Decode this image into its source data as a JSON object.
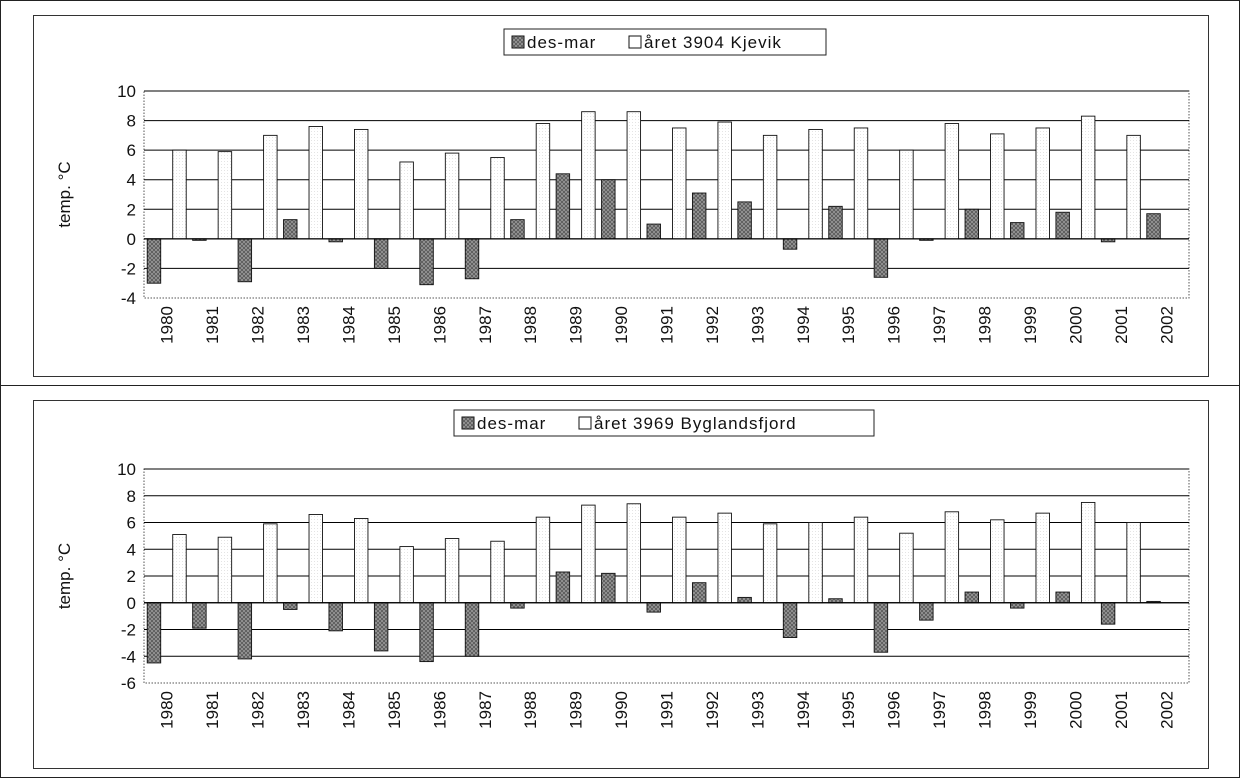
{
  "colors": {
    "des_mar_fill": "#555555",
    "aret_fill": "#ffffff",
    "gridline": "#000000",
    "plot_border": "#555555"
  },
  "chart_data": [
    {
      "type": "bar",
      "title": "",
      "legend": {
        "placement": "top-center",
        "entries": [
          "des-mar",
          "året 3904 Kjevik"
        ]
      },
      "xlabel": "",
      "ylabel": "temp. °C",
      "ylim": [
        -4,
        10
      ],
      "yticks": [
        10,
        8,
        6,
        4,
        2,
        0,
        -2,
        -4
      ],
      "grid": true,
      "categories": [
        "1980",
        "1981",
        "1982",
        "1983",
        "1984",
        "1985",
        "1986",
        "1987",
        "1988",
        "1989",
        "1990",
        "1991",
        "1992",
        "1993",
        "1994",
        "1995",
        "1996",
        "1997",
        "1998",
        "1999",
        "2000",
        "2001",
        "2002"
      ],
      "series": [
        {
          "name": "des-mar",
          "pattern": "crosshatch-dark",
          "values": [
            -3.0,
            -0.1,
            -2.9,
            1.3,
            -0.2,
            -2.0,
            -3.1,
            -2.7,
            1.3,
            4.4,
            4.0,
            1.0,
            3.1,
            2.5,
            -0.7,
            2.2,
            -2.6,
            -0.1,
            2.0,
            1.1,
            1.8,
            -0.2,
            1.7
          ]
        },
        {
          "name": "året 3904 Kjevik",
          "pattern": "white",
          "values": [
            6.0,
            5.9,
            7.0,
            7.6,
            7.4,
            5.2,
            5.8,
            5.5,
            7.8,
            8.6,
            8.6,
            7.5,
            7.9,
            7.0,
            7.4,
            7.5,
            6.0,
            7.8,
            7.1,
            7.5,
            8.3,
            7.0,
            null
          ]
        }
      ]
    },
    {
      "type": "bar",
      "title": "",
      "legend": {
        "placement": "top-center",
        "entries": [
          "des-mar",
          "året 3969 Byglandsfjord"
        ]
      },
      "xlabel": "",
      "ylabel": "temp. °C",
      "ylim": [
        -6,
        10
      ],
      "yticks": [
        10,
        8,
        6,
        4,
        2,
        0,
        -2,
        -4,
        -6
      ],
      "grid": true,
      "categories": [
        "1980",
        "1981",
        "1982",
        "1983",
        "1984",
        "1985",
        "1986",
        "1987",
        "1988",
        "1989",
        "1990",
        "1991",
        "1992",
        "1993",
        "1994",
        "1995",
        "1996",
        "1997",
        "1998",
        "1999",
        "2000",
        "2001",
        "2002"
      ],
      "series": [
        {
          "name": "des-mar",
          "pattern": "crosshatch-dark",
          "values": [
            -4.5,
            -1.9,
            -4.2,
            -0.5,
            -2.1,
            -3.6,
            -4.4,
            -4.0,
            -0.4,
            2.3,
            2.2,
            -0.7,
            1.5,
            0.4,
            -2.6,
            0.3,
            -3.7,
            -1.3,
            0.8,
            -0.4,
            0.8,
            -1.6,
            0.1
          ]
        },
        {
          "name": "året 3969 Byglandsfjord",
          "pattern": "white",
          "values": [
            5.1,
            4.9,
            5.9,
            6.6,
            6.3,
            4.2,
            4.8,
            4.6,
            6.4,
            7.3,
            7.4,
            6.4,
            6.7,
            5.9,
            6.0,
            6.4,
            5.2,
            6.8,
            6.2,
            6.7,
            7.5,
            6.0,
            null
          ]
        }
      ]
    }
  ]
}
